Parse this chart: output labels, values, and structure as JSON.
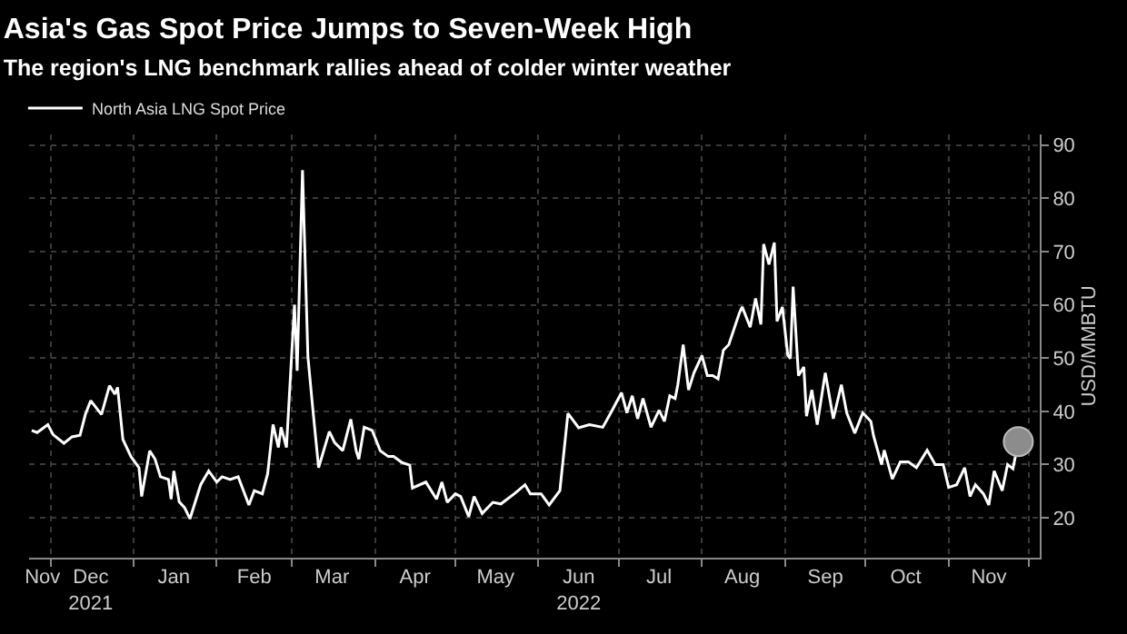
{
  "chart_data": {
    "type": "line",
    "title": "Asia's Gas Spot Price Jumps to Seven-Week High",
    "subtitle": "The region's LNG benchmark rallies ahead of colder winter weather",
    "ylabel": "USD/MMBTU",
    "xlim": [
      "2021-11-23",
      "2022-12-05"
    ],
    "ylim": [
      12.5,
      92
    ],
    "xticks": [
      {
        "value": "2021-11-28",
        "label": "Nov"
      },
      {
        "value": "2021-12-16",
        "label": "Dec\n2021"
      },
      {
        "value": "2022-01-16",
        "label": "Jan"
      },
      {
        "value": "2022-02-15",
        "label": "Feb"
      },
      {
        "value": "2022-03-16",
        "label": "Mar"
      },
      {
        "value": "2022-04-16",
        "label": "Apr"
      },
      {
        "value": "2022-05-16",
        "label": "May"
      },
      {
        "value": "2022-06-16",
        "label": "Jun\n2022"
      },
      {
        "value": "2022-07-16",
        "label": "Jul"
      },
      {
        "value": "2022-08-16",
        "label": "Aug"
      },
      {
        "value": "2022-09-16",
        "label": "Sep"
      },
      {
        "value": "2022-10-16",
        "label": "Oct"
      },
      {
        "value": "2022-11-16",
        "label": "Nov"
      }
    ],
    "yticks": [
      20,
      30,
      40,
      50,
      60,
      70,
      80,
      90
    ],
    "grid": true,
    "legend": "top left",
    "marker": "none",
    "line_style": "solid",
    "series": [
      {
        "name": "North Asia LNG Spot Price",
        "color": "#ffffff",
        "x": [
          "2021-11-24",
          "2021-11-26",
          "2021-11-30",
          "2021-12-02",
          "2021-12-06",
          "2021-12-09",
          "2021-12-12",
          "2021-12-14",
          "2021-12-16",
          "2021-12-20",
          "2021-12-23",
          "2021-12-25",
          "2021-12-26",
          "2021-12-28",
          "2021-12-31",
          "2022-01-03",
          "2022-01-04",
          "2022-01-07",
          "2022-01-09",
          "2022-01-11",
          "2022-01-14",
          "2022-01-15",
          "2022-01-16",
          "2022-01-18",
          "2022-01-20",
          "2022-01-22",
          "2022-01-26",
          "2022-01-29",
          "2022-02-01",
          "2022-02-03",
          "2022-02-06",
          "2022-02-09",
          "2022-02-13",
          "2022-02-15",
          "2022-02-18",
          "2022-02-20",
          "2022-02-22",
          "2022-02-24",
          "2022-02-25",
          "2022-02-27",
          "2022-03-02",
          "2022-03-03",
          "2022-03-05",
          "2022-03-07",
          "2022-03-09",
          "2022-03-11",
          "2022-03-15",
          "2022-03-17",
          "2022-03-20",
          "2022-03-23",
          "2022-03-25",
          "2022-03-26",
          "2022-03-28",
          "2022-03-31",
          "2022-04-03",
          "2022-04-06",
          "2022-04-08",
          "2022-04-11",
          "2022-04-14",
          "2022-04-15",
          "2022-04-20",
          "2022-04-22",
          "2022-04-24",
          "2022-04-26",
          "2022-04-28",
          "2022-05-01",
          "2022-05-03",
          "2022-05-06",
          "2022-05-08",
          "2022-05-11",
          "2022-05-15",
          "2022-05-18",
          "2022-05-23",
          "2022-05-27",
          "2022-05-29",
          "2022-06-02",
          "2022-06-05",
          "2022-06-09",
          "2022-06-12",
          "2022-06-16",
          "2022-06-20",
          "2022-06-25",
          "2022-06-28",
          "2022-07-02",
          "2022-07-04",
          "2022-07-06",
          "2022-07-08",
          "2022-07-10",
          "2022-07-13",
          "2022-07-16",
          "2022-07-18",
          "2022-07-20",
          "2022-07-22",
          "2022-07-23",
          "2022-07-25",
          "2022-07-27",
          "2022-07-29",
          "2022-08-01",
          "2022-08-03",
          "2022-08-05",
          "2022-08-07",
          "2022-08-09",
          "2022-08-11",
          "2022-08-15",
          "2022-08-16",
          "2022-08-19",
          "2022-08-21",
          "2022-08-23",
          "2022-08-24",
          "2022-08-26",
          "2022-08-28",
          "2022-08-29",
          "2022-08-31",
          "2022-09-02",
          "2022-09-03",
          "2022-09-04",
          "2022-09-06",
          "2022-09-08",
          "2022-09-09",
          "2022-09-11",
          "2022-09-13",
          "2022-09-16",
          "2022-09-19",
          "2022-09-22",
          "2022-09-24",
          "2022-09-27",
          "2022-09-30",
          "2022-10-03",
          "2022-10-04",
          "2022-10-07",
          "2022-10-08",
          "2022-10-11",
          "2022-10-14",
          "2022-10-17",
          "2022-10-20",
          "2022-10-24",
          "2022-10-27",
          "2022-10-30",
          "2022-11-01",
          "2022-11-04",
          "2022-11-07",
          "2022-11-09",
          "2022-11-11",
          "2022-11-14",
          "2022-11-16",
          "2022-11-18",
          "2022-11-21",
          "2022-11-23",
          "2022-11-25",
          "2022-11-27"
        ],
        "values": [
          36.4,
          36,
          37.5,
          35.6,
          34,
          35.2,
          35.5,
          39.4,
          42,
          39.4,
          44.8,
          43.2,
          44.5,
          34.7,
          31.5,
          29.4,
          24,
          32.6,
          31,
          27.7,
          27.2,
          23.5,
          28.8,
          23,
          21.9,
          19.8,
          26.2,
          28.8,
          26.7,
          27.7,
          27.2,
          27.7,
          22.4,
          25.1,
          24.5,
          28.3,
          37.5,
          33.2,
          37,
          33.2,
          60,
          47.6,
          85.3,
          50.3,
          39.6,
          29.4,
          36.2,
          34.1,
          32.6,
          38.5,
          32.6,
          31,
          37,
          36.4,
          32.6,
          31.5,
          31.5,
          30.4,
          29.9,
          25.6,
          26.7,
          25.1,
          23.5,
          26.7,
          22.9,
          24.5,
          24,
          20.2,
          24,
          20.8,
          22.9,
          22.6,
          24.5,
          26.2,
          24.5,
          24.5,
          22.4,
          25.1,
          39.6,
          36.9,
          37.5,
          37,
          39.7,
          43.5,
          39.7,
          42.9,
          38.6,
          42.4,
          37,
          40.2,
          38.1,
          42.9,
          42.4,
          45,
          52.5,
          44,
          47.2,
          50.5,
          46.7,
          46.7,
          46.1,
          51.5,
          52.5,
          58.5,
          59.6,
          55.8,
          61.2,
          56.3,
          71.4,
          67.6,
          71.7,
          56.9,
          59.6,
          50.5,
          49.9,
          63.4,
          46.7,
          48.3,
          39.1,
          44,
          37.5,
          47.2,
          38.6,
          45,
          39.7,
          35.9,
          39.7,
          38.1,
          35.4,
          30,
          32.7,
          27.3,
          30.5,
          30.5,
          29.4,
          32.7,
          30,
          30,
          25.7,
          26.2,
          29.4,
          24,
          26.2,
          24.5,
          22.4,
          28.8,
          25.1,
          30,
          29.2,
          34.3
        ]
      },
      {
        "type": "scatter",
        "color": "#8c8c8c",
        "x": [
          "2022-11-27"
        ],
        "values": [
          34.3
        ],
        "marker": "circle"
      }
    ]
  }
}
